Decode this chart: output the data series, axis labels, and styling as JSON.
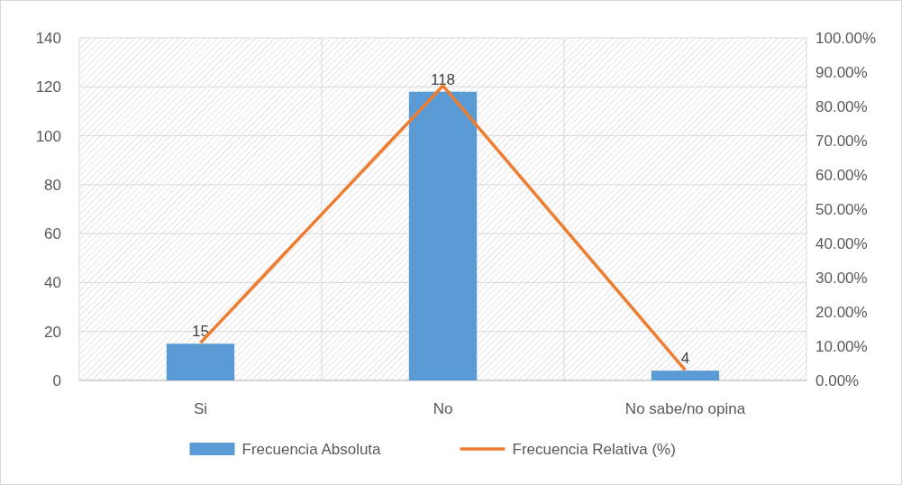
{
  "chart_data": {
    "type": "bar",
    "categories": [
      "Si",
      "No",
      "No sabe/no opina"
    ],
    "series": [
      {
        "name": "Frecuencia Absoluta",
        "color": "#5b9bd5",
        "values": [
          15,
          118,
          4
        ],
        "value_labels": [
          "15",
          "118",
          "4"
        ]
      },
      {
        "name": "Frecuencia Relativa (%)",
        "type": "line",
        "axis": "y2",
        "color": "#ed7d31",
        "values": [
          11,
          86,
          3
        ]
      }
    ],
    "ylim": [
      0,
      140
    ],
    "yticks": [
      0,
      20,
      40,
      60,
      80,
      100,
      120,
      140
    ],
    "y2lim": [
      0,
      100
    ],
    "y2ticks": [
      {
        "value": 0,
        "label": "0.00%"
      },
      {
        "value": 10,
        "label": "10.00%"
      },
      {
        "value": 20,
        "label": "20.00%"
      },
      {
        "value": 30,
        "label": "30.00%"
      },
      {
        "value": 40,
        "label": "40.00%"
      },
      {
        "value": 50,
        "label": "50.00%"
      },
      {
        "value": 60,
        "label": "60.00%"
      },
      {
        "value": 70,
        "label": "70.00%"
      },
      {
        "value": 80,
        "label": "80.00%"
      },
      {
        "value": 90,
        "label": "90.00%"
      },
      {
        "value": 100,
        "label": "100.00%"
      }
    ],
    "grid": true,
    "legend": "bottom",
    "marker": "none",
    "line_style": "solid"
  }
}
